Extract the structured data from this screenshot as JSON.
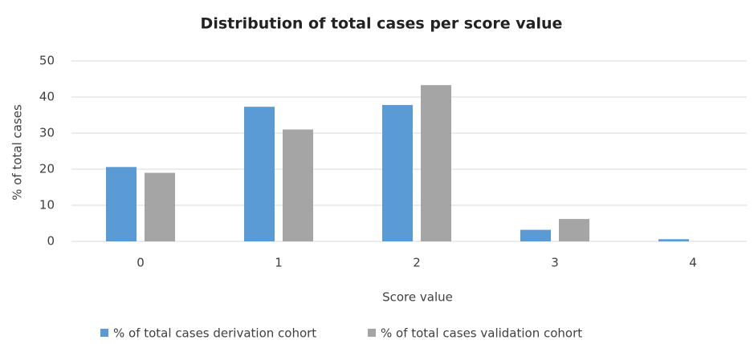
{
  "chart_data": {
    "type": "bar",
    "title": "Distribution of total cases per score value",
    "x_label": "Score value",
    "y_label": "% of total cases",
    "categories": [
      "0",
      "1",
      "2",
      "3",
      "4"
    ],
    "series": [
      {
        "name": "% of total cases derivation cohort",
        "color": "#5b9bd5",
        "values": [
          20.6,
          37.3,
          37.8,
          3.2,
          0.6
        ]
      },
      {
        "name": "% of total cases validation cohort",
        "color": "#a5a5a5",
        "values": [
          19,
          31,
          43.3,
          6.2,
          0
        ]
      }
    ],
    "ylim": [
      0,
      50
    ],
    "yticks": [
      0,
      10,
      20,
      30,
      40,
      50
    ],
    "grid": true,
    "legend": "bottom"
  }
}
